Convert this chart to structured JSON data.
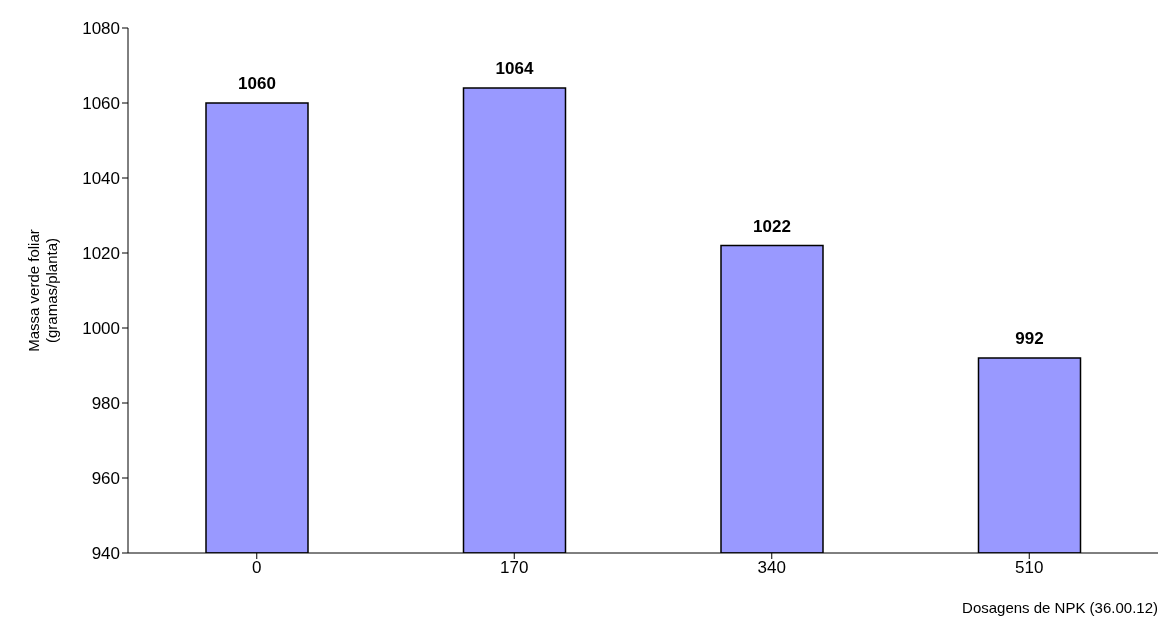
{
  "chart_data": {
    "type": "bar",
    "categories": [
      "0",
      "170",
      "340",
      "510"
    ],
    "values": [
      1060,
      1064,
      1022,
      992
    ],
    "color": "#9999ff",
    "xlabel": "Dosagens de NPK (36.00.12)",
    "ylabel": "Massa verde foliar\n(gramas/planta)",
    "ylim": [
      940,
      1080
    ],
    "yticks": [
      940,
      960,
      980,
      1000,
      1020,
      1040,
      1060,
      1080
    ],
    "data_labels": true,
    "grid": false,
    "legend": false
  }
}
